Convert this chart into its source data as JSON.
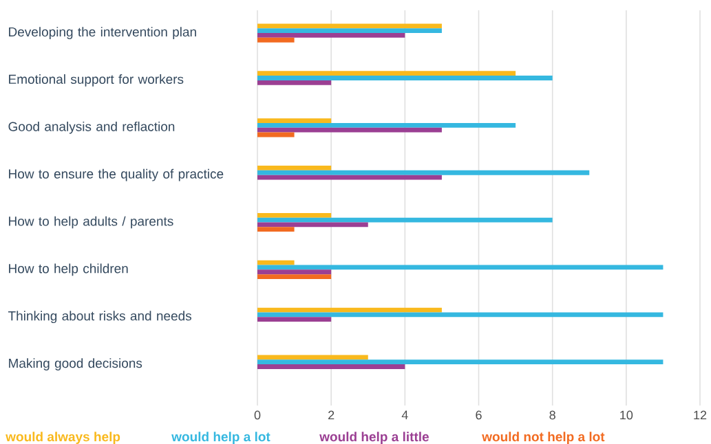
{
  "chart_data": {
    "type": "bar",
    "orientation": "horizontal",
    "categories": [
      "Developing the intervention plan",
      "Emotional support for workers",
      "Good analysis and reflaction",
      "How to ensure the quality of practice",
      "How to help adults / parents",
      "How to help children",
      "Thinking about risks and needs",
      "Making good decisions"
    ],
    "series": [
      {
        "name": "would always help",
        "color": "#f9b91d",
        "values": [
          5,
          7,
          2,
          2,
          2,
          1,
          5,
          3
        ]
      },
      {
        "name": "would help a lot",
        "color": "#35b8e0",
        "values": [
          5,
          8,
          7,
          9,
          8,
          11,
          11,
          11
        ]
      },
      {
        "name": "would help a little",
        "color": "#9b3f93",
        "values": [
          4,
          2,
          5,
          5,
          3,
          2,
          2,
          4
        ]
      },
      {
        "name": "would not help a lot",
        "color": "#f26b21",
        "values": [
          1,
          null,
          1,
          null,
          1,
          2,
          null,
          null
        ]
      }
    ],
    "xlim": [
      0,
      12
    ],
    "xticks": [
      0,
      2,
      4,
      6,
      8,
      10,
      12
    ],
    "grid": "x",
    "legend": "bottom"
  }
}
